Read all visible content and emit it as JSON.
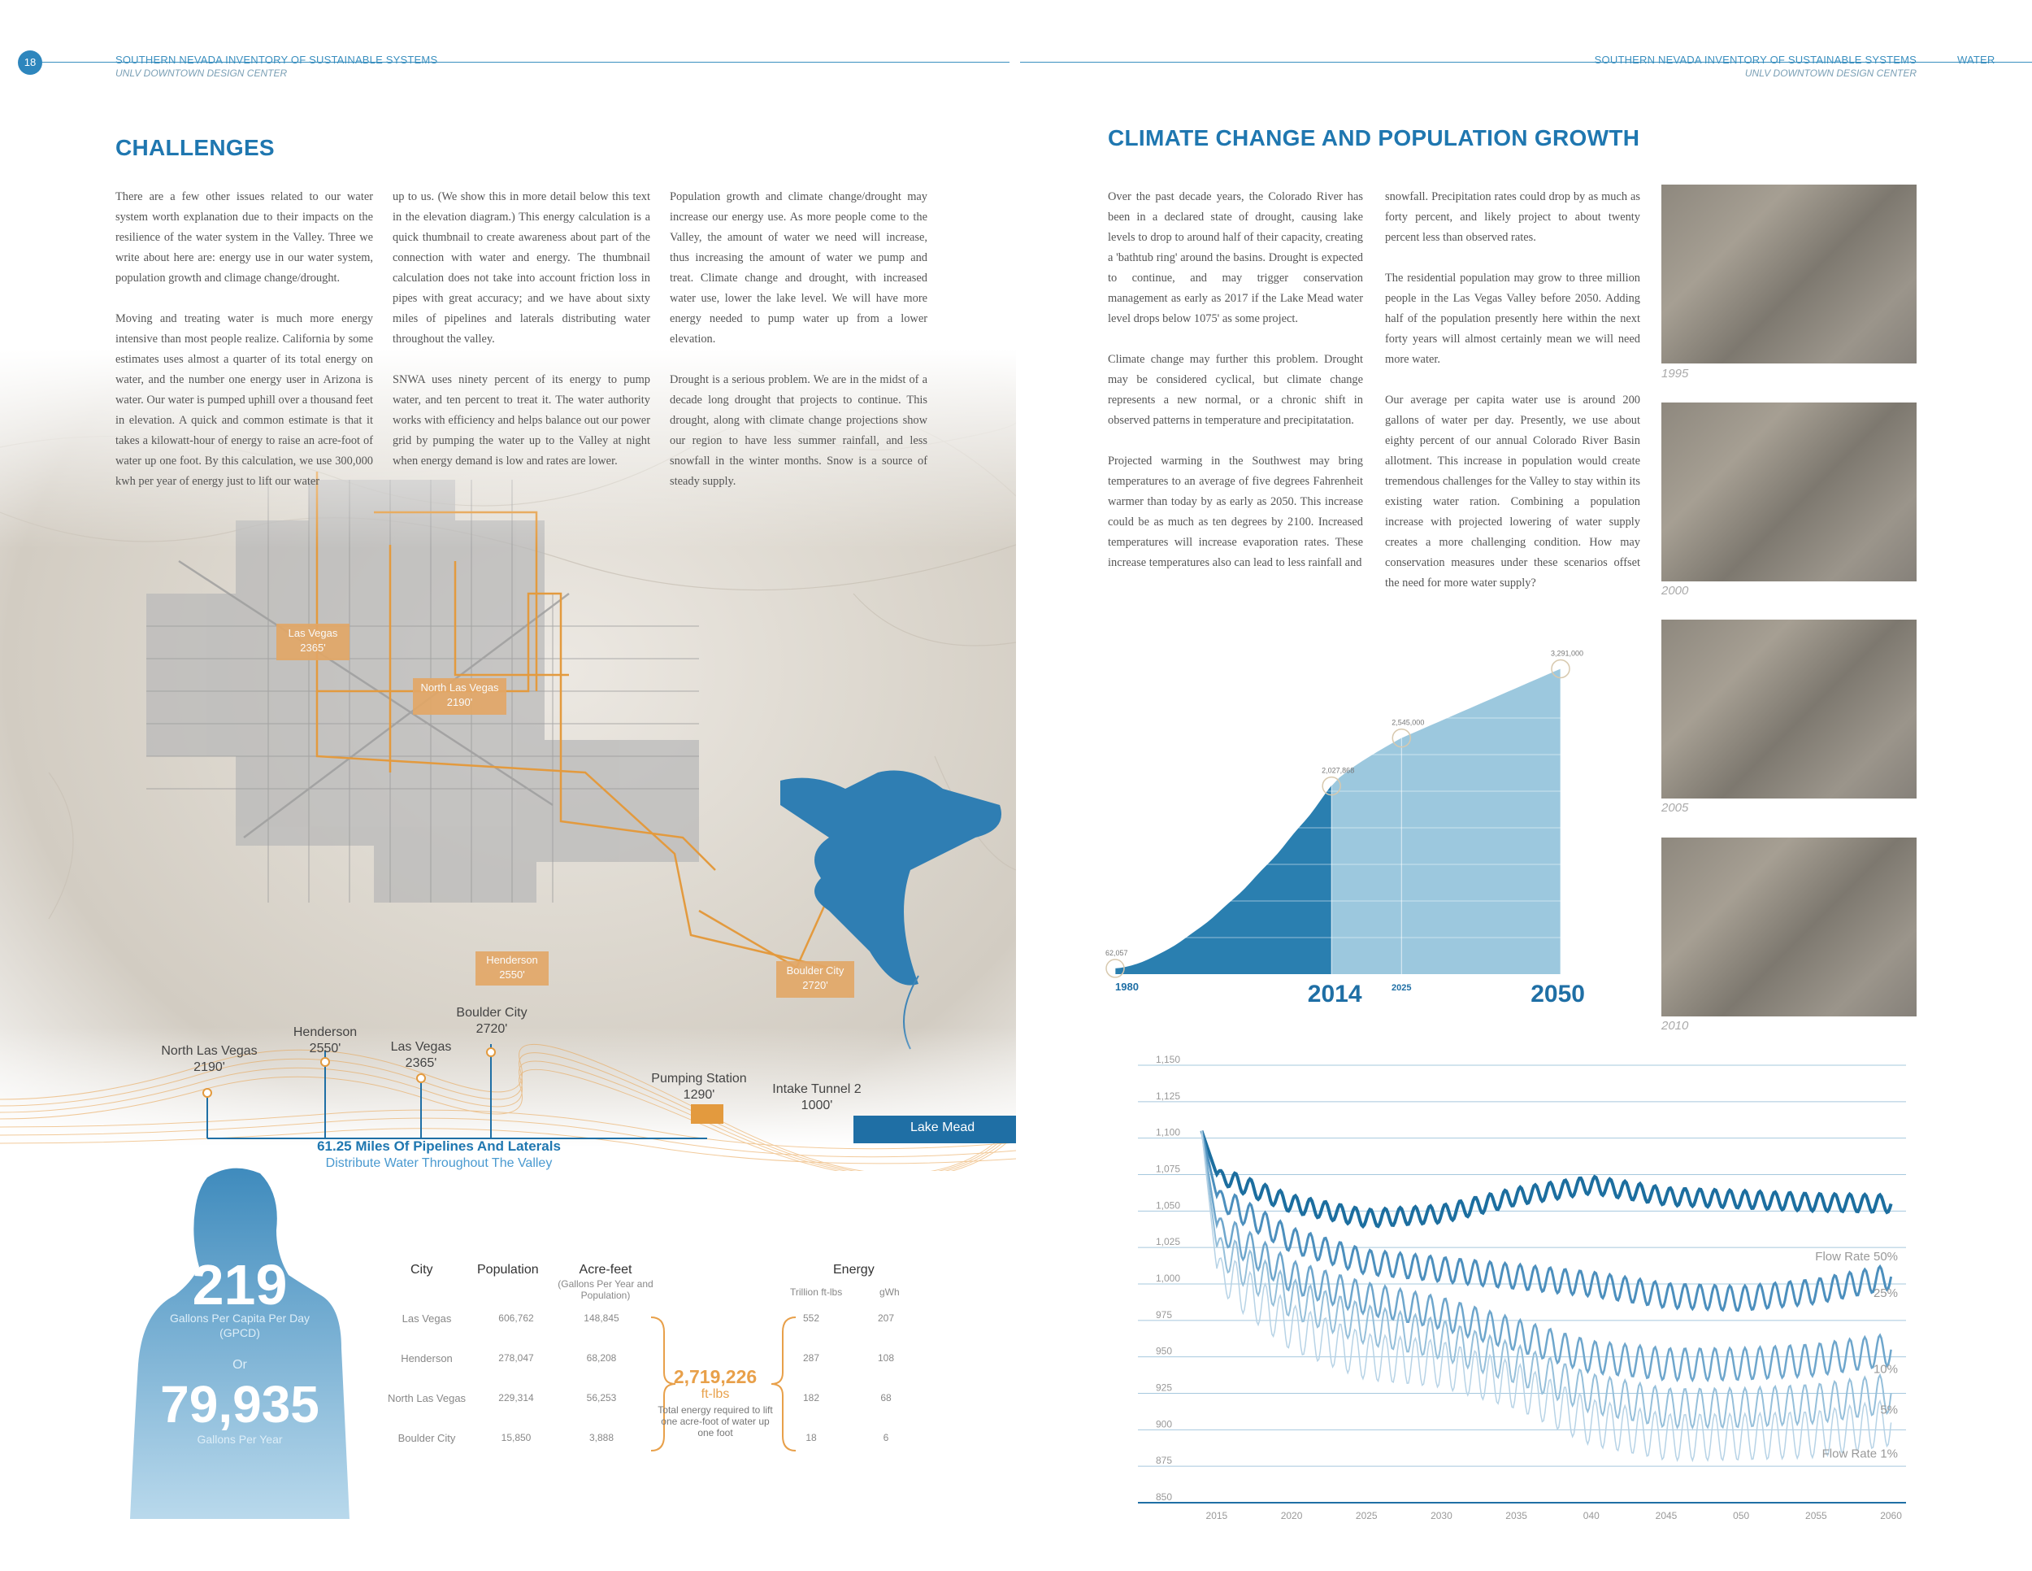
{
  "header": {
    "page_number": "18",
    "left_line1": "SOUTHERN NEVADA INVENTORY OF SUSTAINABLE SYSTEMS",
    "left_line2": "UNLV DOWNTOWN DESIGN CENTER",
    "right_line1": "SOUTHERN NEVADA INVENTORY OF SUSTAINABLE SYSTEMS",
    "right_line2": "UNLV DOWNTOWN DESIGN CENTER",
    "section": "WATER"
  },
  "left": {
    "title": "CHALLENGES",
    "col1": [
      "There are a few other issues related to our water system worth explanation due to their impacts on the resilience of the water system in the Valley. Three we write about here are: energy use in our water system, population growth and climage change/drought.",
      "Moving and treating water is much more energy intensive than most people realize. California by some estimates uses almost a quarter of its total energy on water, and the number one energy user in Arizona is water. Our water is pumped uphill over a thousand feet in elevation. A quick and common estimate is that it takes a kilowatt-hour of energy to raise an acre-foot of water up one foot. By this calculation, we use 300,000 kwh per year of energy just to lift our water"
    ],
    "col2": [
      "up to us. (We show this in more detail below this text in the elevation diagram.) This energy calculation is a quick thumbnail to create awareness about part of the connection with water and energy. The thumbnail calculation does not take into account friction loss in pipes with great accuracy; and we have about sixty miles of pipelines and laterals distributing water throughout the valley.",
      "SNWA uses ninety percent of its energy to pump water, and ten percent to treat it. The water authority works with efficiency and helps balance out our power grid by pumping the water up to the Valley at night when energy demand is low and rates are lower."
    ],
    "col3": [
      "Population growth and climate change/drought may increase our energy use. As more people come to the Valley, the amount of water we need will increase, thus increasing the amount of water we pump and treat. Climate change and drought, with increased water use, lower the lake level. We will have more energy needed to pump water up from a lower elevation.",
      "Drought is a serious problem. We are in the midst of a decade long drought that projects to continue. This drought, along with climate change projections show our region to have less summer rainfall, and less snowfall in the winter months. Snow is a source of steady supply."
    ],
    "map_labels": {
      "lv": "Las Vegas",
      "lv_el": "2365'",
      "nlv": "North Las Vegas",
      "nlv_el": "2190'",
      "hen": "Henderson",
      "hen_el": "2550'",
      "bc": "Boulder City",
      "bc_el": "2720'"
    },
    "elevation": {
      "nlv": "North Las Vegas",
      "nlv_el": "2190'",
      "hen": "Henderson",
      "hen_el": "2550'",
      "lv": "Las Vegas",
      "lv_el": "2365'",
      "bc": "Boulder City",
      "bc_el": "2720'",
      "ps": "Pumping Station",
      "ps_el": "1290'",
      "it": "Intake Tunnel 2",
      "it_el": "1000'",
      "lake": "Lake Mead",
      "pipe_title": "61.25 Miles Of Pipelines And Laterals",
      "pipe_sub": "Distribute Water Throughout The Valley"
    },
    "gpcd": {
      "value": "219",
      "label": "Gallons Per Capita Per Day (GPCD)",
      "or": "Or",
      "year_value": "79,935",
      "year_label": "Gallons Per Year"
    },
    "table": {
      "h_city": "City",
      "h_pop": "Population",
      "h_af": "Acre-feet",
      "h_af_sub": "(Gallons Per Year and Population)",
      "h_energy": "Energy",
      "h_tft": "Trillion ft-lbs",
      "h_gwh": "gWh",
      "rows": [
        {
          "city": "Las Vegas",
          "pop": "606,762",
          "af": "148,845",
          "tft": "552",
          "gwh": "207"
        },
        {
          "city": "Henderson",
          "pop": "278,047",
          "af": "68,208",
          "tft": "287",
          "gwh": "108"
        },
        {
          "city": "North Las Vegas",
          "pop": "229,314",
          "af": "56,253",
          "tft": "182",
          "gwh": "68"
        },
        {
          "city": "Boulder City",
          "pop": "15,850",
          "af": "3,888",
          "tft": "18",
          "gwh": "6"
        }
      ],
      "total_value": "2,719,226",
      "total_unit": "ft-lbs",
      "total_desc": "Total energy required to lift one acre-foot of water up one foot"
    }
  },
  "right": {
    "title": "CLIMATE CHANGE AND POPULATION GROWTH",
    "col1": [
      "Over the past decade years, the Colorado River has been in a declared state of drought, causing lake levels to drop to around half of their capacity, creating a 'bathtub ring' around the basins. Drought is expected to continue, and may trigger conservation management as early as 2017 if the Lake Mead water level drops below 1075' as some project.",
      "Climate change may further this problem. Drought may be considered cyclical, but climate change represents a new normal, or a chronic shift in observed patterns in temperature and precipitatation.",
      "Projected warming in the Southwest may bring temperatures to an average of five degrees Fahrenheit warmer than today by as early as 2050. This increase could be as much as ten degrees by 2100. Increased temperatures will increase evaporation rates. These increase temperatures also can lead to less rainfall and"
    ],
    "col2": [
      "snowfall. Precipitation rates could drop by as much as forty percent, and likely project to about twenty percent less than observed rates.",
      "The residential population may grow to three million people in the Las Vegas Valley before 2050. Adding half of the population presently here within the next forty years will almost certainly mean we will need more water.",
      "Our average per capita water use is around 200 gallons of water per day. Presently, we use about eighty percent of our annual Colorado River Basin allotment. This increase in population would create tremendous challenges for the Valley to stay within its existing water ration. Combining a population increase with projected lowering of water supply creates a more challenging condition. How may conservation measures under these scenarios offset the need for more water supply?"
    ],
    "photo_years": [
      "1995",
      "2000",
      "2005",
      "2010"
    ]
  },
  "chart_data": [
    {
      "type": "area",
      "title": "",
      "x": [
        1980,
        2014,
        2025,
        2050
      ],
      "point_labels": [
        "62,057",
        "2,027,868",
        "2,545,000",
        "3,291,000"
      ],
      "values": [
        62057,
        2027868,
        2545000,
        3291000
      ],
      "x_labels": [
        "1980",
        "2014",
        "2025",
        "2050"
      ],
      "colors": {
        "historic": "#2a7fb0",
        "projected": "#9cc8de"
      }
    },
    {
      "type": "line",
      "title": "",
      "ylabel": "",
      "xlabel": "",
      "ylim": [
        850,
        1150
      ],
      "y_ticks": [
        "1,150",
        "1,125",
        "1,100",
        "1,075",
        "1,050",
        "1,025",
        "1,000",
        "975",
        "950",
        "925",
        "900",
        "875",
        "850"
      ],
      "x_ticks": [
        "2015",
        "2020",
        "2025",
        "2030",
        "2035",
        "040",
        "2045",
        "050",
        "2055",
        "2060"
      ],
      "series": [
        {
          "name": "Flow Rate 50%",
          "start": 1105,
          "base": [
            1075,
            1055,
            1045,
            1048,
            1060,
            1068,
            1060,
            1058,
            1056,
            1055
          ]
        },
        {
          "name": "25%",
          "start": 1105,
          "base": [
            1060,
            1030,
            1015,
            1010,
            1005,
            1000,
            992,
            990,
            995,
            1005
          ]
        },
        {
          "name": "10%",
          "start": 1105,
          "base": [
            1040,
            1005,
            990,
            980,
            965,
            950,
            945,
            945,
            948,
            955
          ]
        },
        {
          "name": "5%",
          "start": 1105,
          "base": [
            1025,
            990,
            972,
            962,
            945,
            925,
            915,
            915,
            918,
            925
          ]
        },
        {
          "name": "Flow Rate 1%",
          "start": 1105,
          "base": [
            1010,
            970,
            950,
            945,
            930,
            905,
            895,
            895,
            897,
            905
          ]
        }
      ],
      "colors": [
        "#1c6e9f",
        "#4c8fbd",
        "#6ea6cc",
        "#95bfda",
        "#b7d3e6"
      ]
    }
  ]
}
